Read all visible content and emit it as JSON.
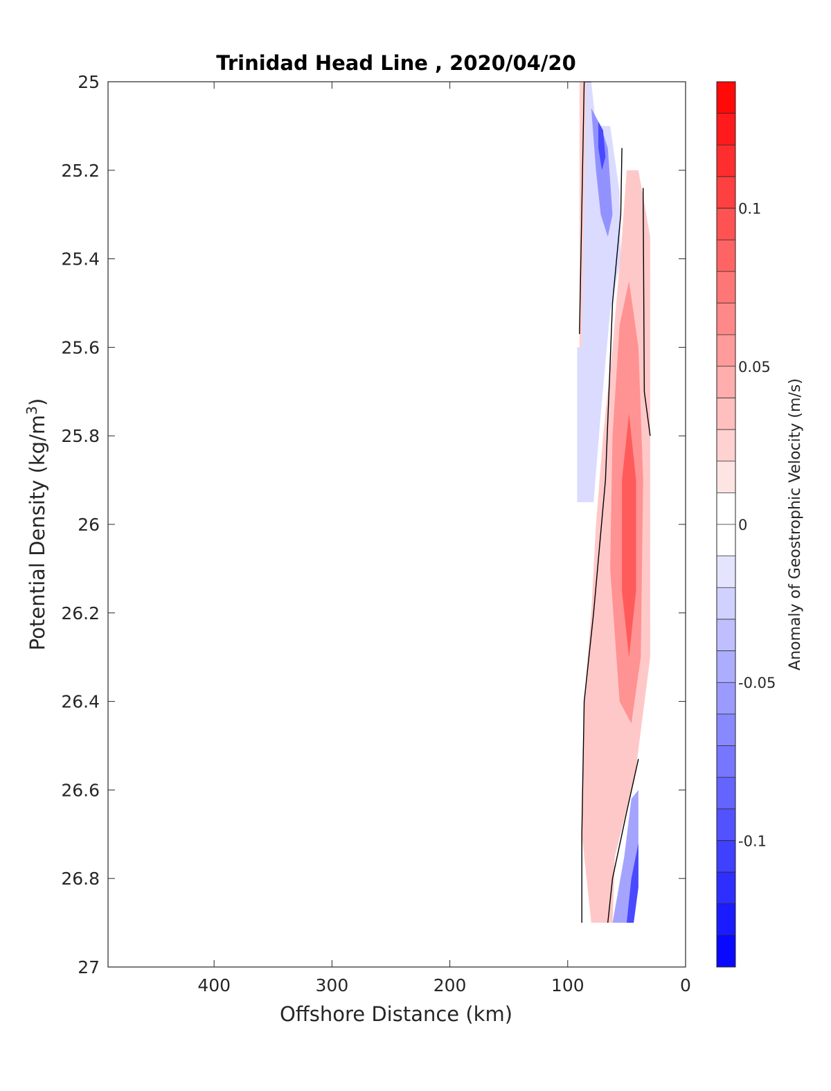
{
  "chart_data": {
    "type": "heatmap",
    "title": "Trinidad Head Line , 2020/04/20",
    "xlabel": "Offshore Distance (km)",
    "ylabel": "Potential Density (kg/m",
    "ylabel_superscript": "3",
    "ylabel_suffix": ")",
    "xlim": [
      490,
      0
    ],
    "ylim": [
      25,
      27
    ],
    "x_reversed": true,
    "y_reversed": true,
    "xticks": [
      400,
      300,
      200,
      100,
      0
    ],
    "xtick_labels": [
      "400",
      "300",
      "200",
      "100",
      "0"
    ],
    "yticks": [
      25,
      25.2,
      25.4,
      25.6,
      25.8,
      26,
      26.2,
      26.4,
      26.6,
      26.8,
      27
    ],
    "ytick_labels": [
      "25",
      "25.2",
      "25.4",
      "25.6",
      "25.8",
      "26",
      "26.2",
      "26.4",
      "26.6",
      "26.8",
      "27"
    ],
    "grid": false,
    "colorbar": {
      "label": "Anomaly of Geostrophic Velocity (m/s)",
      "range": [
        -0.14,
        0.14
      ],
      "level_step": 0.01,
      "ticks": [
        0.1,
        0.05,
        0,
        -0.05,
        -0.1
      ],
      "tick_labels": [
        "0.1",
        "0.05",
        "0",
        "-0.05",
        "-0.1"
      ],
      "positive_color": "#ff0000",
      "negative_color": "#0000ff",
      "zero_color": "#ffffff"
    },
    "regions": [
      {
        "name": "nearshore surface positive",
        "value": 0.025,
        "points": [
          [
            90,
            25
          ],
          [
            84,
            25
          ],
          [
            84,
            25.6
          ],
          [
            90,
            25.6
          ]
        ]
      },
      {
        "name": "surface negative anomaly",
        "value": -0.02,
        "points": [
          [
            84,
            25
          ],
          [
            80,
            25
          ],
          [
            76,
            25.1
          ],
          [
            64,
            25.1
          ],
          [
            56,
            25.25
          ],
          [
            55,
            25.4
          ],
          [
            64,
            25.52
          ],
          [
            72,
            25.75
          ],
          [
            78,
            25.95
          ],
          [
            92,
            25.95
          ],
          [
            92,
            25.6
          ],
          [
            88,
            25.6
          ]
        ]
      },
      {
        "name": "surface negative core",
        "value": -0.06,
        "points": [
          [
            80,
            25.06
          ],
          [
            72,
            25.1
          ],
          [
            66,
            25.15
          ],
          [
            62,
            25.3
          ],
          [
            66,
            25.35
          ],
          [
            72,
            25.3
          ],
          [
            76,
            25.2
          ]
        ]
      },
      {
        "name": "surface negative center",
        "value": -0.1,
        "points": [
          [
            74,
            25.09
          ],
          [
            70,
            25.11
          ],
          [
            68,
            25.17
          ],
          [
            71,
            25.2
          ],
          [
            74,
            25.15
          ]
        ]
      },
      {
        "name": "positive tongue",
        "value": 0.03,
        "points": [
          [
            50,
            25.2
          ],
          [
            40,
            25.2
          ],
          [
            30,
            25.35
          ],
          [
            30,
            26.3
          ],
          [
            42,
            26.55
          ],
          [
            46,
            26.6
          ],
          [
            60,
            26.75
          ],
          [
            62,
            26.9
          ],
          [
            80,
            26.9
          ],
          [
            88,
            26.7
          ],
          [
            86,
            26.4
          ],
          [
            80,
            26.2
          ],
          [
            76,
            26
          ],
          [
            70,
            25.8
          ],
          [
            62,
            25.6
          ],
          [
            54,
            25.35
          ]
        ]
      },
      {
        "name": "positive core",
        "value": 0.06,
        "points": [
          [
            48,
            25.45
          ],
          [
            40,
            25.6
          ],
          [
            36,
            25.9
          ],
          [
            38,
            26.3
          ],
          [
            46,
            26.45
          ],
          [
            56,
            26.4
          ],
          [
            64,
            26.1
          ],
          [
            62,
            25.8
          ],
          [
            56,
            25.55
          ]
        ]
      },
      {
        "name": "positive center",
        "value": 0.09,
        "points": [
          [
            48,
            25.75
          ],
          [
            42,
            25.9
          ],
          [
            42,
            26.15
          ],
          [
            48,
            26.3
          ],
          [
            54,
            26.15
          ],
          [
            54,
            25.9
          ]
        ]
      },
      {
        "name": "deep negative anomaly",
        "value": -0.05,
        "points": [
          [
            40,
            26.6
          ],
          [
            46,
            26.62
          ],
          [
            52,
            26.75
          ],
          [
            62,
            26.9
          ],
          [
            50,
            26.9
          ],
          [
            40,
            26.8
          ]
        ]
      },
      {
        "name": "deep negative core",
        "value": -0.1,
        "points": [
          [
            40,
            26.72
          ],
          [
            46,
            26.8
          ],
          [
            50,
            26.9
          ],
          [
            44,
            26.9
          ],
          [
            40,
            26.82
          ]
        ]
      }
    ],
    "zero_contours": [
      {
        "name": "offshore zero line",
        "points": [
          [
            90,
            25.57
          ],
          [
            86,
            25
          ],
          [
            80,
            25
          ]
        ]
      },
      {
        "name": "main zero line",
        "points": [
          [
            54,
            25.15
          ],
          [
            55,
            25.3
          ],
          [
            62,
            25.5
          ],
          [
            68,
            25.9
          ],
          [
            78,
            26.2
          ],
          [
            86,
            26.4
          ],
          [
            88,
            26.7
          ],
          [
            88,
            26.9
          ]
        ]
      },
      {
        "name": "inshore zero line",
        "points": [
          [
            36,
            25.24
          ],
          [
            35,
            25.7
          ],
          [
            30,
            25.8
          ]
        ]
      },
      {
        "name": "deep zero line",
        "points": [
          [
            40,
            26.53
          ],
          [
            50,
            26.65
          ],
          [
            62,
            26.8
          ],
          [
            66,
            26.9
          ]
        ]
      }
    ]
  }
}
